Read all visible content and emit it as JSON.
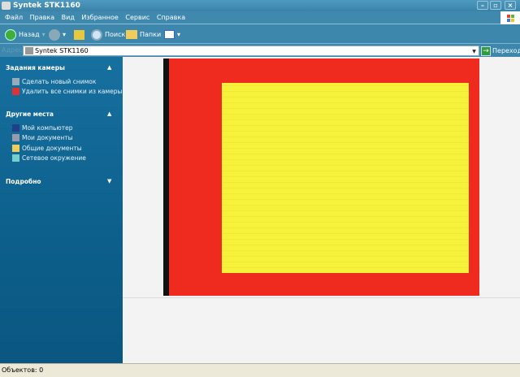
{
  "window": {
    "title": "Syntek STK1160"
  },
  "menu": [
    "Файл",
    "Правка",
    "Вид",
    "Избранное",
    "Сервис",
    "Справка"
  ],
  "toolbar": {
    "back": "Назад",
    "search": "Поиск",
    "folders": "Папки"
  },
  "address": {
    "label": "Адрес",
    "value": "Syntek STK1160",
    "go": "Переход"
  },
  "sidebar": {
    "camera_tasks": {
      "title": "Задания камеры",
      "items": [
        "Сделать новый снимок",
        "Удалить все снимки из камеры"
      ]
    },
    "other_places": {
      "title": "Другие места",
      "items": [
        "Мой компьютер",
        "Мои документы",
        "Общие документы",
        "Сетевое окружение"
      ]
    },
    "details": {
      "title": "Подробно"
    }
  },
  "colors": {
    "preview_red": "#ef2a1e",
    "preview_yellow": "#f6f23a",
    "sidebar": "#0d5f8b"
  },
  "status": {
    "text": "Объектов: 0"
  }
}
